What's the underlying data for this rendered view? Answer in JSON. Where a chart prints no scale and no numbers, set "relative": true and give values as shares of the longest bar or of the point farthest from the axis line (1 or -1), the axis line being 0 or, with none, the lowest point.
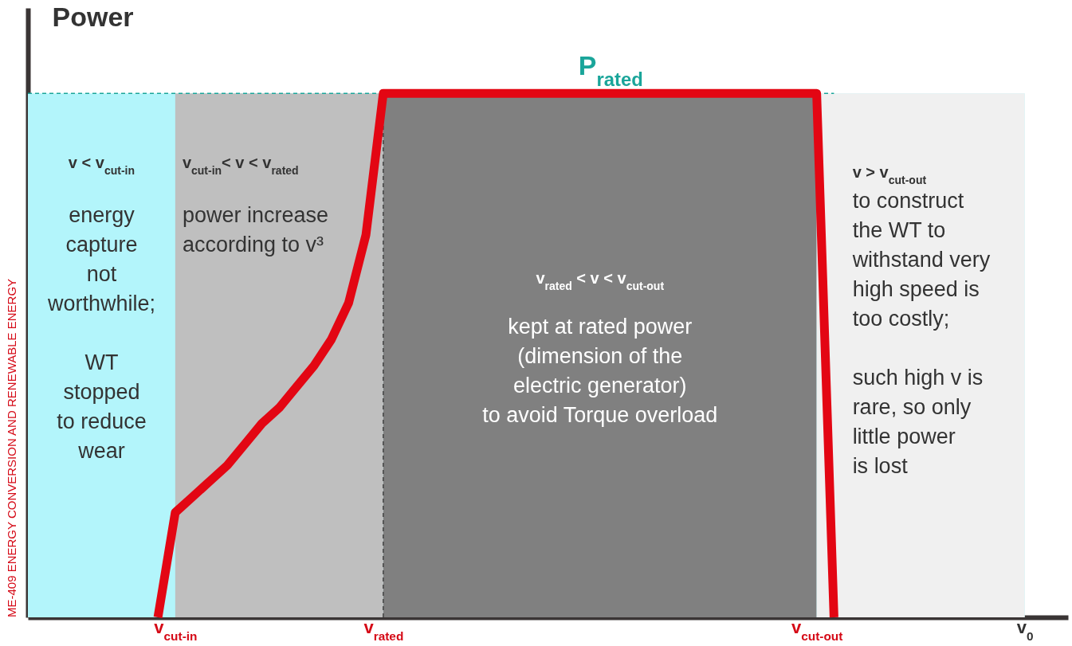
{
  "chart_data": {
    "type": "line",
    "relative": true,
    "ylabel": "Power",
    "marker": "none",
    "line_style": "solid",
    "grid": false,
    "categories": [
      null,
      null,
      null,
      null,
      null,
      null,
      null,
      null,
      "v$_{cut-in}$",
      null,
      null,
      null,
      null,
      null,
      null,
      null,
      null,
      null,
      null,
      null,
      "v$_{rated}$",
      null,
      null,
      null,
      null,
      null,
      null,
      null,
      null,
      null,
      null,
      null,
      null,
      null,
      null,
      null,
      null,
      null,
      null,
      null,
      null,
      null,
      null,
      null,
      null,
      "v$_{cut-out}$",
      null,
      null,
      null,
      null,
      null,
      null,
      null,
      null,
      null,
      null,
      null,
      "v$_{0}$",
      null,
      null
    ],
    "series": [
      {
        "color": "#e30613",
        "values": [
          null,
          null,
          null,
          null,
          null,
          null,
          null,
          0,
          0.2,
          0.23,
          0.26,
          0.29,
          0.33,
          0.37,
          0.4,
          0.44,
          0.48,
          0.53,
          0.6,
          0.73,
          1,
          1,
          1,
          1,
          1,
          1,
          1,
          1,
          1,
          1,
          1,
          1,
          1,
          1,
          1,
          1,
          1,
          1,
          1,
          1,
          1,
          1,
          1,
          1,
          1,
          1,
          0,
          null,
          null,
          null,
          null,
          null,
          null,
          null,
          null,
          null,
          null,
          null,
          null,
          null
        ]
      }
    ],
    "bands": [
      {
        "axis": "y",
        "from": 0,
        "to": 1,
        "color": "#b3f5fb",
        "label": "v < v$_{cut-in}$"
      },
      {
        "axis": "x",
        "from": "v$_{cut-in}$",
        "to": "v$_{rated}$",
        "color": "#bfbfbf",
        "label": "v$_{cut-in}$< v < v$_{rated}$"
      },
      {
        "axis": "x",
        "from": "v$_{rated}$",
        "to": "v$_{cut-out}$",
        "color": "#808080",
        "label": "v$_{rated}$ < v < v$_{cut-out}$"
      },
      {
        "axis": "x",
        "from": "v$_{cut-out}$",
        "to": "v$_{0}$",
        "color": "#f0f0f0",
        "label": "v > v$_{cut-out}$"
      }
    ],
    "ref_lines": [
      {
        "axis": "y",
        "value": 1,
        "label": "P$_{rated}$",
        "color": "#1aa59a",
        "line_style": "dashed"
      },
      {
        "axis": "x",
        "value": "v$_{rated}$",
        "color": "#444444",
        "line_style": "dashed"
      }
    ],
    "annotations": [
      "ME-409 ENERGY CONVERSION AND RENEWABLE ENERGY",
      "energy\ncapture\nnot\nworthwhile;\n\nWT\nstopped\nto reduce\nwear",
      "power increase\naccording to v³",
      "kept at rated power\n(dimension of the\nelectric generator)\nto avoid Torque overload",
      "to construct\nthe WT to\nwithstand very\nhigh speed is\ntoo costly;\n\nsuch high v is\nrare, so only\nlittle power\nis lost"
    ]
  }
}
